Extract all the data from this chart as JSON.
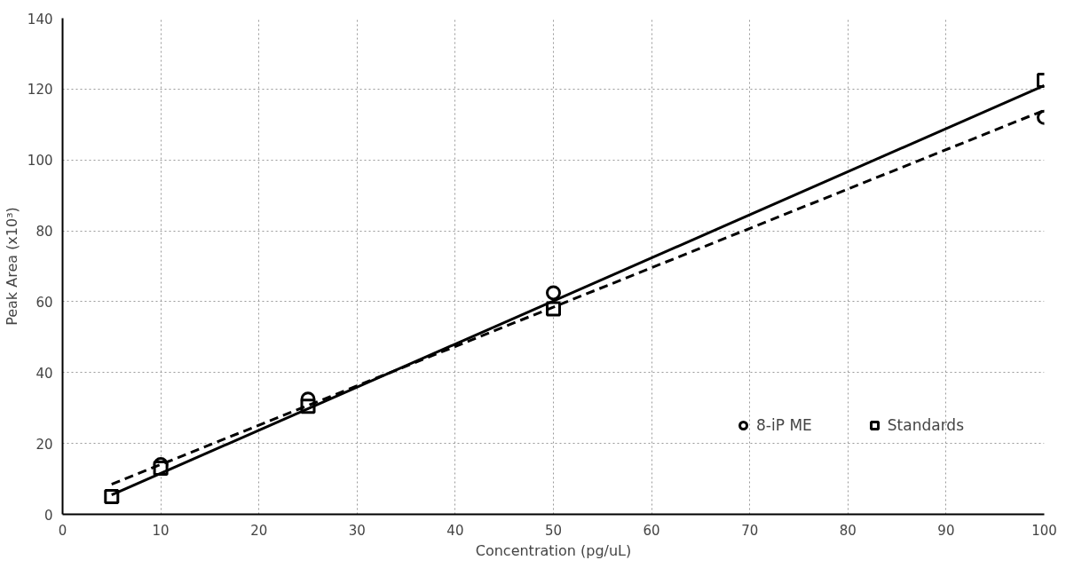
{
  "chart_data": {
    "type": "scatter",
    "xlabel": "Concentration (pg/uL)",
    "ylabel": "Peak Area (x10³)",
    "xlim": [
      0,
      100
    ],
    "ylim": [
      0,
      140
    ],
    "xticks": [
      0,
      10,
      20,
      30,
      40,
      50,
      60,
      70,
      80,
      90,
      100
    ],
    "yticks": [
      0,
      20,
      40,
      60,
      80,
      100,
      120,
      140
    ],
    "grid": true,
    "legend": "bottom right",
    "series": [
      {
        "name": "8-iP ME",
        "color": "#000000",
        "marker": "circle",
        "x": [
          10,
          25,
          50,
          100
        ],
        "values": [
          14,
          32.5,
          62.5,
          112
        ]
      },
      {
        "name": "Standards",
        "color": "#000000",
        "marker": "square",
        "x": [
          5,
          10,
          25,
          50,
          100
        ],
        "values": [
          5,
          13,
          30.5,
          58,
          122.5
        ]
      },
      {
        "type": "line",
        "color": "#000000",
        "line_style": "dashed",
        "x": [
          5,
          100
        ],
        "values": [
          8.5,
          114
        ]
      },
      {
        "type": "line",
        "color": "#000000",
        "line_style": "solid",
        "x": [
          5,
          100
        ],
        "values": [
          5.5,
          121
        ]
      }
    ]
  }
}
